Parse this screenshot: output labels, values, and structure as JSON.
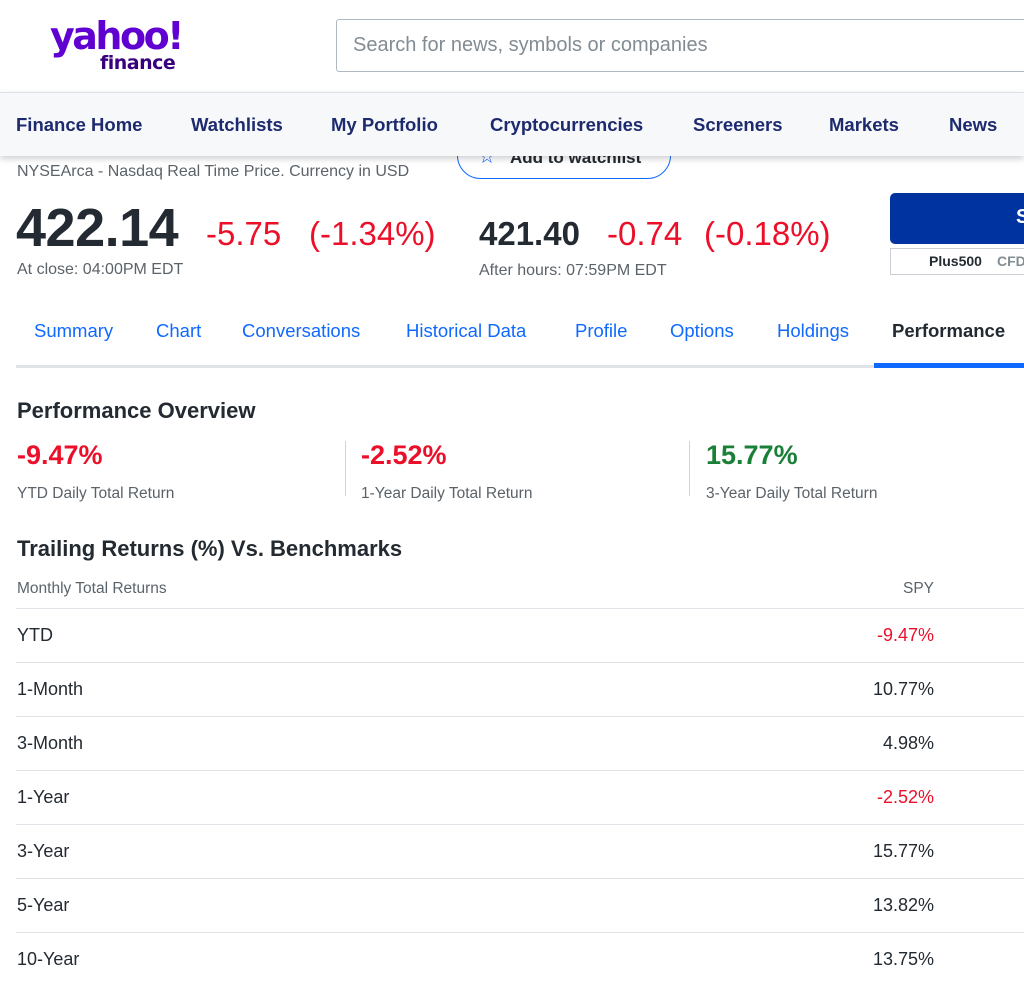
{
  "header": {
    "logo_main": "yahoo!",
    "logo_sub": "finance",
    "search_placeholder": "Search for news, symbols or companies"
  },
  "nav": {
    "items": [
      "Finance Home",
      "Watchlists",
      "My Portfolio",
      "Cryptocurrencies",
      "Screeners",
      "Markets",
      "News"
    ]
  },
  "quote": {
    "exchange_line": "NYSEArca - Nasdaq Real Time Price. Currency in USD",
    "watchlist_label": "Add to watchlist",
    "price": "422.14",
    "change": "-5.75",
    "change_pct": "(-1.34%)",
    "close_label": "At close: 04:00PM EDT",
    "after_hours_price": "421.40",
    "after_hours_change": "-0.74",
    "after_hours_change_pct": "(-0.18%)",
    "after_hours_label": "After hours: 07:59PM EDT"
  },
  "ad": {
    "button_text": "S",
    "sponsor": "Plus500",
    "sponsor_suffix": "CFD"
  },
  "tabs": [
    "Summary",
    "Chart",
    "Conversations",
    "Historical Data",
    "Profile",
    "Options",
    "Holdings",
    "Performance"
  ],
  "active_tab": "Performance",
  "performance_overview": {
    "title": "Performance Overview",
    "stats": [
      {
        "value": "-9.47%",
        "label": "YTD Daily Total Return",
        "sign": "negative"
      },
      {
        "value": "-2.52%",
        "label": "1-Year Daily Total Return",
        "sign": "negative"
      },
      {
        "value": "15.77%",
        "label": "3-Year Daily Total Return",
        "sign": "positive"
      }
    ]
  },
  "trailing_returns": {
    "title": "Trailing Returns (%) Vs. Benchmarks",
    "col_period": "Monthly Total Returns",
    "col_symbol": "SPY",
    "rows": [
      {
        "period": "YTD",
        "value": "-9.47%",
        "sign": "negative"
      },
      {
        "period": "1-Month",
        "value": "10.77%",
        "sign": "positive"
      },
      {
        "period": "3-Month",
        "value": "4.98%",
        "sign": "positive"
      },
      {
        "period": "1-Year",
        "value": "-2.52%",
        "sign": "negative"
      },
      {
        "period": "3-Year",
        "value": "15.77%",
        "sign": "positive"
      },
      {
        "period": "5-Year",
        "value": "13.82%",
        "sign": "positive"
      },
      {
        "period": "10-Year",
        "value": "13.75%",
        "sign": "positive"
      }
    ]
  },
  "colors": {
    "brand": "#6001d2",
    "nav_text": "#1d2a6e",
    "link": "#0f69ff",
    "negative": "#eb0f29",
    "positive": "#1a7f37"
  }
}
